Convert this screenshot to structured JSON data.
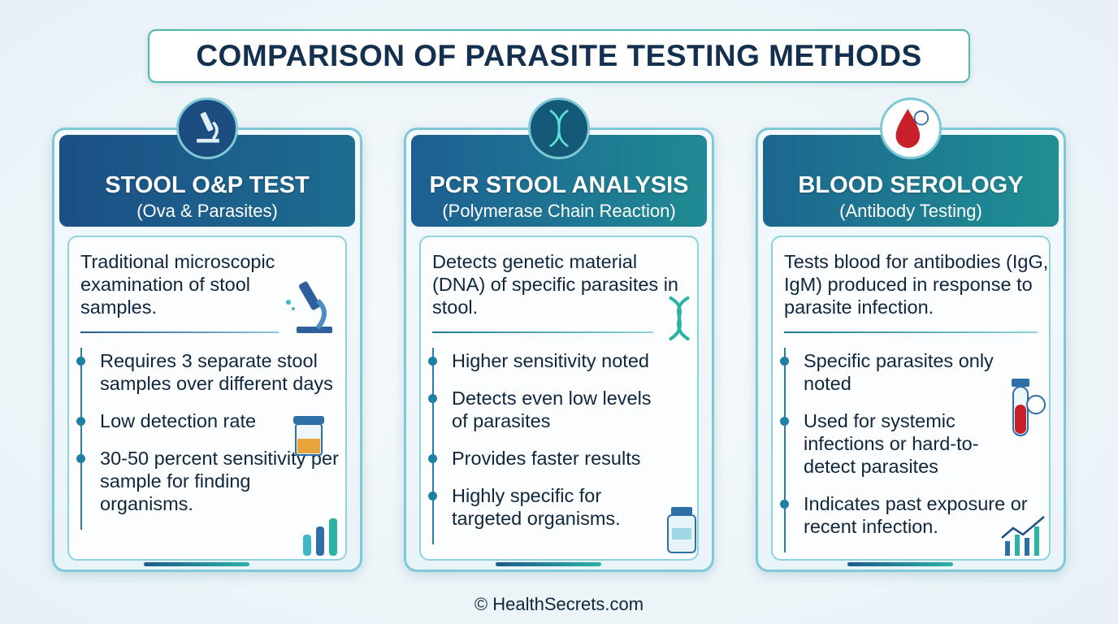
{
  "header": {
    "title": "COMPARISON OF PARASITE TESTING METHODS"
  },
  "cards": [
    {
      "title": "STOOL O&P TEST",
      "subtitle": "(Ova & Parasites)",
      "description": "Traditional microscopic examination of stool samples.",
      "bullets": [
        "Requires 3 separate stool samples over different days",
        "Low detection rate",
        "30-50 percent sensitivity per sample for finding organisms."
      ]
    },
    {
      "title": "PCR STOOL ANALYSIS",
      "subtitle": "(Polymerase Chain Reaction)",
      "description": "Detects genetic material (DNA) of specific parasites in stool.",
      "bullets": [
        "Higher sensitivity noted",
        "Detects even low levels of parasites",
        "Provides faster results",
        "Highly specific for targeted organisms."
      ]
    },
    {
      "title": "BLOOD SEROLOGY",
      "subtitle": "(Antibody Testing)",
      "description": "Tests blood for antibodies (IgG, IgM) produced in response to parasite infection.",
      "bullets": [
        "Specific parasites only noted",
        "Used for systemic infections or hard-to-detect parasites",
        "Indicates past exposure or recent infection."
      ]
    }
  ],
  "footer": {
    "text": "© HealthSecrets.com"
  }
}
